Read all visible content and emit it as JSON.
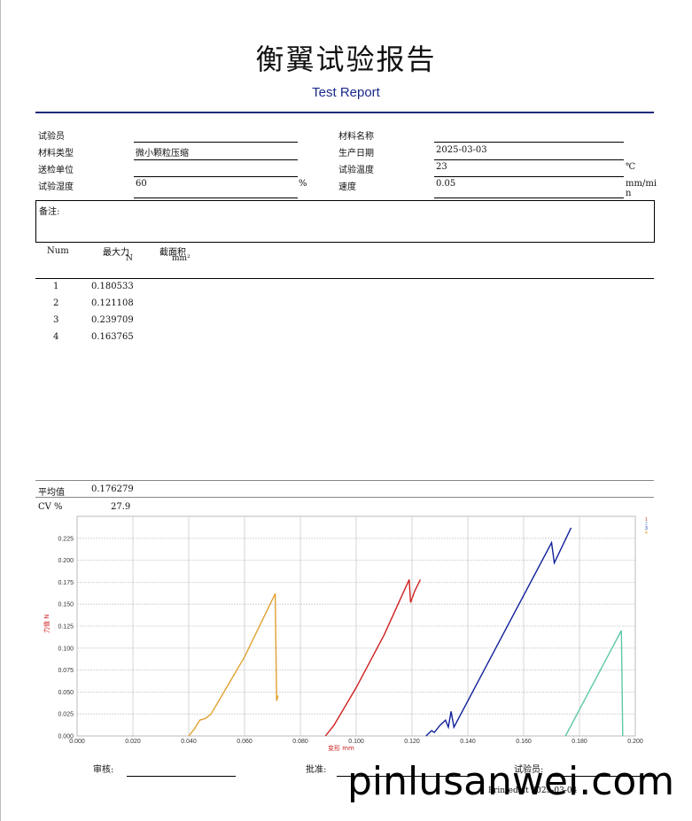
{
  "header": {
    "title": "衡翼试验报告",
    "subtitle": "Test Report"
  },
  "info": {
    "tester_label": "试验员",
    "tester_value": "",
    "material_type_label": "材料类型",
    "material_type_value": "微小颗粒压缩",
    "sender_label": "送检单位",
    "sender_value": "",
    "humidity_label": "试验湿度",
    "humidity_value": "60",
    "humidity_unit": "%",
    "material_name_label": "材料名称",
    "material_name_value": "",
    "prod_date_label": "生产日期",
    "prod_date_value": "2025-03-03",
    "temp_label": "试验温度",
    "temp_value": "23",
    "temp_unit": "℃",
    "speed_label": "速度",
    "speed_value": "0.05",
    "speed_unit_1": "mm/mi",
    "speed_unit_2": "n"
  },
  "remarks_label": "备注:",
  "table": {
    "col_num": "Num",
    "col_force": "最大力",
    "col_force_unit": "N",
    "col_area": "截面积",
    "col_area_unit": "mm²",
    "rows": [
      {
        "num": "1",
        "force": "0.180533"
      },
      {
        "num": "2",
        "force": "0.121108"
      },
      {
        "num": "3",
        "force": "0.239709"
      },
      {
        "num": "4",
        "force": "0.163765"
      }
    ],
    "avg_label": "平均值",
    "avg_value": "0.176279",
    "cv_label": "CV %",
    "cv_value": "27.9"
  },
  "chart_data": {
    "type": "line",
    "xlabel": "变形 mm",
    "ylabel": "力值 N",
    "xlim": [
      0,
      0.2
    ],
    "ylim": [
      0,
      0.25
    ],
    "x_ticks": [
      "0.000",
      "0.020",
      "0.040",
      "0.060",
      "0.080",
      "0.100",
      "0.120",
      "0.140",
      "0.160",
      "0.180",
      "0.200"
    ],
    "y_ticks": [
      "0.000",
      "0.025",
      "0.050",
      "0.075",
      "0.100",
      "0.125",
      "0.150",
      "0.175",
      "0.200",
      "0.225"
    ],
    "grid": true,
    "legend_position": "top-right",
    "series": [
      {
        "name": "1",
        "color": "#d02020",
        "points": [
          [
            0.089,
            0
          ],
          [
            0.092,
            0.012
          ],
          [
            0.1,
            0.055
          ],
          [
            0.11,
            0.115
          ],
          [
            0.119,
            0.178
          ],
          [
            0.1195,
            0.152
          ],
          [
            0.121,
            0.165
          ],
          [
            0.123,
            0.178
          ]
        ]
      },
      {
        "name": "2",
        "color": "#5a8ad8",
        "points": []
      },
      {
        "name": "3",
        "color": "#10209a",
        "points": [
          [
            0.125,
            0
          ],
          [
            0.127,
            0.006
          ],
          [
            0.128,
            0.004
          ],
          [
            0.13,
            0.012
          ],
          [
            0.132,
            0.018
          ],
          [
            0.133,
            0.01
          ],
          [
            0.134,
            0.028
          ],
          [
            0.135,
            0.01
          ],
          [
            0.15,
            0.1
          ],
          [
            0.17,
            0.22
          ],
          [
            0.171,
            0.197
          ],
          [
            0.177,
            0.237
          ]
        ]
      },
      {
        "name": "4",
        "color": "#e0a030",
        "points": [
          [
            0.04,
            0
          ],
          [
            0.042,
            0.008
          ],
          [
            0.044,
            0.018
          ],
          [
            0.046,
            0.02
          ],
          [
            0.048,
            0.025
          ],
          [
            0.06,
            0.09
          ],
          [
            0.071,
            0.162
          ],
          [
            0.0715,
            0.04
          ],
          [
            0.072,
            0.046
          ]
        ]
      },
      {
        "name": "",
        "color": "#5cc8a8",
        "points": [
          [
            0.175,
            0
          ],
          [
            0.18,
            0.03
          ],
          [
            0.19,
            0.09
          ],
          [
            0.195,
            0.12
          ],
          [
            0.1955,
            0
          ]
        ]
      }
    ]
  },
  "footer": {
    "review_label": "审核:",
    "approve_label": "批准:",
    "tester_label": "试验员:",
    "printed": "Printed at 2025-03-04"
  },
  "watermark": "pinlusanwei.com"
}
